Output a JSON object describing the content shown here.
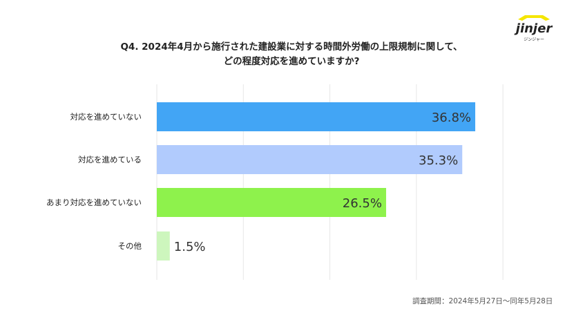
{
  "logo": {
    "text": "jinjer",
    "subtext": "ジンジャー",
    "accent": "#f5e600"
  },
  "chart_data": {
    "type": "bar",
    "orientation": "horizontal",
    "title_lines": [
      "Q4. 2024年4月から施行された建設業に対する時間外労働の上限規制に関して、",
      "どの程度対応を進めていますか?"
    ],
    "categories": [
      "対応を進めていない",
      "対応を進めている",
      "あまり対応を進めていない",
      "その他"
    ],
    "values": [
      36.8,
      35.3,
      26.5,
      1.5
    ],
    "data_labels": [
      "36.8%",
      "35.3%",
      "26.5%",
      "1.5%"
    ],
    "colors": [
      "#42a5f5",
      "#b1cbfd",
      "#8ef24c",
      "#cdf6bd"
    ],
    "xlim": [
      0,
      40
    ],
    "grid": true,
    "grid_step": 10
  },
  "footnote": "調査期間：2024年5月27日〜同年5月28日"
}
